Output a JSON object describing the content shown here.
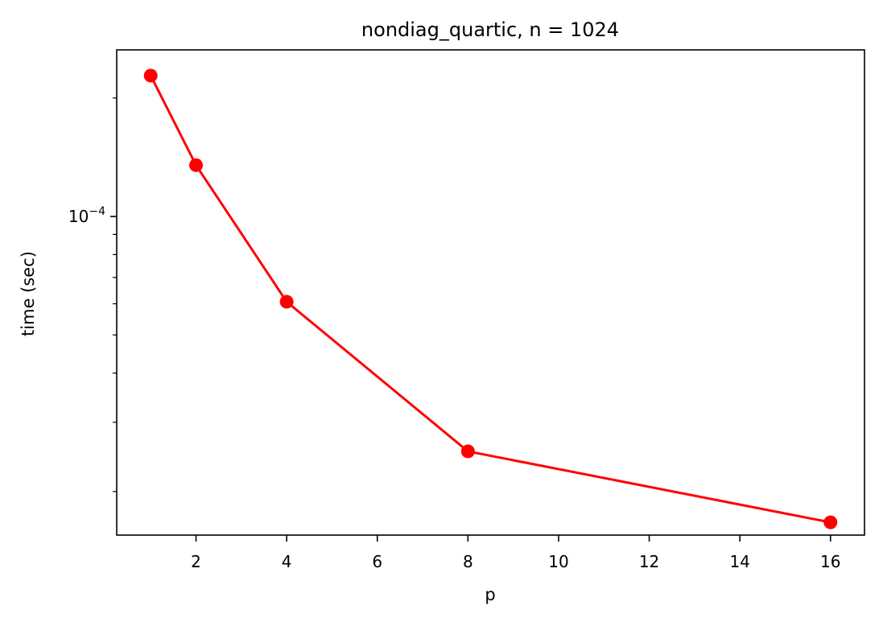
{
  "chart_data": {
    "type": "line",
    "title": "nondiag_quartic, n = 1024",
    "xlabel": "p",
    "ylabel": "time (sec)",
    "x": [
      1,
      2,
      4,
      8,
      16
    ],
    "series": [
      {
        "values": [
          0.000228,
          0.000135,
          6.07e-05,
          2.53e-05,
          1.67e-05
        ]
      }
    ],
    "xlim": [
      0.25,
      16.75
    ],
    "ylim": [
      1.55e-05,
      0.000265
    ],
    "yscale": "log",
    "xticks": [
      2,
      4,
      6,
      8,
      10,
      12,
      14,
      16
    ],
    "xtick_labels": [
      "2",
      "4",
      "6",
      "8",
      "10",
      "12",
      "14",
      "16"
    ],
    "yticks": [
      0.0001
    ],
    "ytick_labels": [
      "10−4"
    ],
    "grid": false,
    "color": "#ff0000",
    "marker": "circle"
  }
}
